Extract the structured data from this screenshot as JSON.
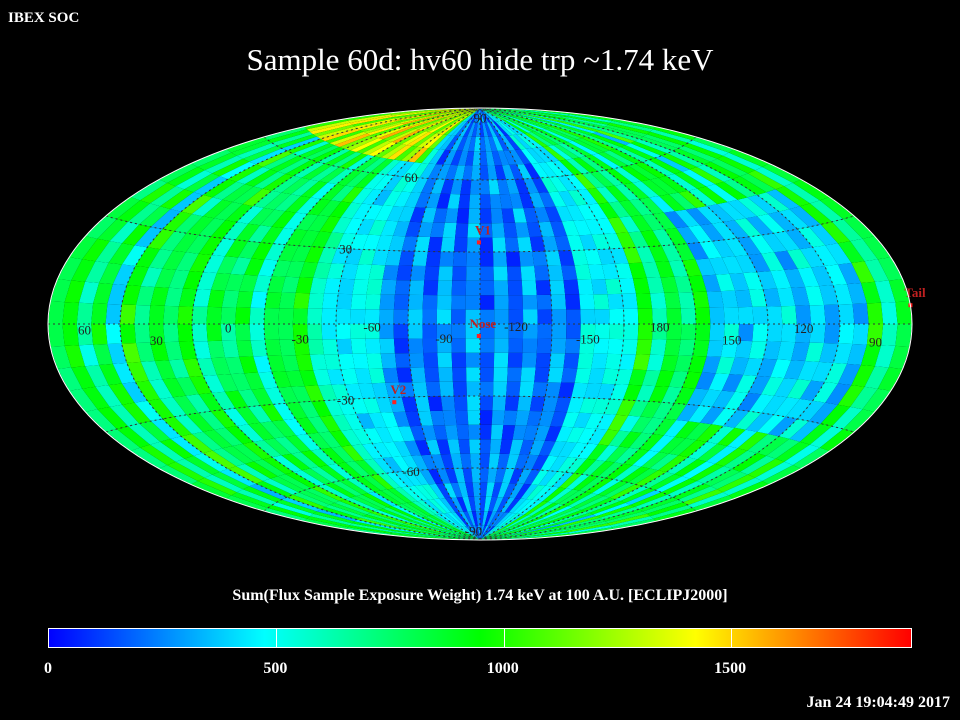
{
  "header": {
    "org": "IBEX SOC",
    "timestamp": "Jan 24 19:04:49 2017"
  },
  "chart_data": {
    "type": "heatmap",
    "projection": "aitoff",
    "title": "Sample 60d: hv60 hide trp ~1.74 keV",
    "colorbar": {
      "label": "Sum(Flux Sample Exposure Weight)  1.74 keV at 100 A.U. [ECLIPJ2000]",
      "range": [
        0,
        1900
      ],
      "ticks": [
        "0",
        "500",
        "1000",
        "1500"
      ],
      "tick_values": [
        0,
        500,
        1000,
        1500
      ],
      "colors": [
        "#0000ff",
        "#00ffff",
        "#00ff00",
        "#ffff00",
        "#ff0000"
      ]
    },
    "longitude_labels": [
      "60",
      "30",
      "0",
      "-30",
      "-60",
      "-90",
      "-120",
      "-150",
      "180",
      "150",
      "120",
      "90"
    ],
    "longitude_values": [
      60,
      30,
      0,
      -30,
      -60,
      -90,
      -120,
      -150,
      180,
      150,
      120,
      90
    ],
    "latitude_labels": [
      "90",
      "60",
      "30",
      "-30",
      "-60",
      "-90"
    ],
    "latitude_values": [
      90,
      60,
      30,
      -30,
      -60,
      -90
    ],
    "markers": [
      {
        "name": "V1",
        "lon_offset": -0.5,
        "lat": 34
      },
      {
        "name": "Nose",
        "lon_offset": -0.5,
        "lat": -5
      },
      {
        "name": "V2",
        "lon_offset": -40,
        "lat": -32
      },
      {
        "name": "Tail",
        "lon_offset": 180,
        "lat": 5
      }
    ],
    "grid": true
  }
}
